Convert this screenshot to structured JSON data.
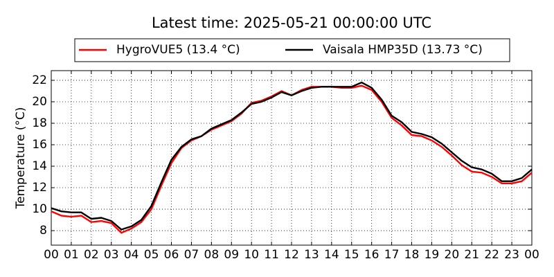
{
  "chart_data": {
    "type": "line",
    "title": "Latest time: 2025-05-21 00:00:00 UTC",
    "y_label": "Temperature (°C)",
    "x": [
      0,
      0.5,
      1,
      1.5,
      2,
      2.5,
      3,
      3.5,
      4,
      4.5,
      5,
      5.5,
      6,
      6.5,
      7,
      7.5,
      8,
      8.5,
      9,
      9.5,
      10,
      10.5,
      11,
      11.5,
      12,
      12.5,
      13,
      13.5,
      14,
      14.5,
      15,
      15.5,
      16,
      16.5,
      17,
      17.5,
      18,
      18.5,
      19,
      19.5,
      20,
      20.5,
      21,
      21.5,
      22,
      22.5,
      23,
      23.5,
      24
    ],
    "series": [
      {
        "name": "HygroVUE5 (13.4 °C)",
        "color": "#ff0000",
        "values": [
          9.8,
          9.4,
          9.3,
          9.4,
          8.8,
          8.9,
          8.7,
          7.8,
          8.2,
          8.8,
          10.0,
          12.2,
          14.3,
          15.7,
          16.4,
          16.8,
          17.4,
          17.8,
          18.2,
          18.9,
          19.9,
          20.1,
          20.5,
          21.0,
          20.6,
          21.1,
          21.4,
          21.4,
          21.4,
          21.3,
          21.3,
          21.5,
          21.1,
          20.0,
          18.5,
          17.8,
          16.9,
          16.8,
          16.4,
          15.8,
          15.0,
          14.1,
          13.5,
          13.4,
          13.0,
          12.4,
          12.4,
          12.6,
          13.4
        ]
      },
      {
        "name": "Vaisala HMP35D (13.73 °C)",
        "color": "#000000",
        "values": [
          10.1,
          9.8,
          9.7,
          9.7,
          9.1,
          9.2,
          8.9,
          8.1,
          8.4,
          9.0,
          10.3,
          12.5,
          14.6,
          15.8,
          16.5,
          16.8,
          17.5,
          17.9,
          18.3,
          19.0,
          19.8,
          20.0,
          20.4,
          20.9,
          20.6,
          21.0,
          21.3,
          21.4,
          21.4,
          21.4,
          21.4,
          21.8,
          21.3,
          20.2,
          18.7,
          18.1,
          17.2,
          17.0,
          16.7,
          16.1,
          15.3,
          14.5,
          13.9,
          13.7,
          13.3,
          12.6,
          12.6,
          12.9,
          13.7
        ]
      }
    ],
    "xlim": [
      0,
      24
    ],
    "xticks": [
      {
        "value": 0,
        "label": "00"
      },
      {
        "value": 1,
        "label": "01"
      },
      {
        "value": 2,
        "label": "02"
      },
      {
        "value": 3,
        "label": "03"
      },
      {
        "value": 4,
        "label": "04"
      },
      {
        "value": 5,
        "label": "05"
      },
      {
        "value": 6,
        "label": "06"
      },
      {
        "value": 7,
        "label": "07"
      },
      {
        "value": 8,
        "label": "08"
      },
      {
        "value": 9,
        "label": "09"
      },
      {
        "value": 10,
        "label": "10"
      },
      {
        "value": 11,
        "label": "11"
      },
      {
        "value": 12,
        "label": "12"
      },
      {
        "value": 13,
        "label": "13"
      },
      {
        "value": 14,
        "label": "14"
      },
      {
        "value": 15,
        "label": "15"
      },
      {
        "value": 16,
        "label": "16"
      },
      {
        "value": 17,
        "label": "17"
      },
      {
        "value": 18,
        "label": "18"
      },
      {
        "value": 19,
        "label": "19"
      },
      {
        "value": 20,
        "label": "20"
      },
      {
        "value": 21,
        "label": "21"
      },
      {
        "value": 22,
        "label": "22"
      },
      {
        "value": 23,
        "label": "23"
      },
      {
        "value": 24,
        "label": "00"
      }
    ],
    "ylim": [
      6.65,
      22.9
    ],
    "yticks": [
      8,
      10,
      12,
      14,
      16,
      18,
      20,
      22
    ],
    "grid": true,
    "legend": "top"
  }
}
